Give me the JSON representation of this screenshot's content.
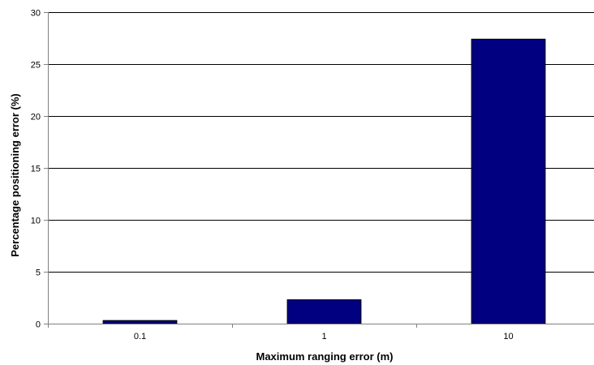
{
  "chart_data": {
    "type": "bar",
    "title": "",
    "xlabel": "Maximum ranging error (m)",
    "ylabel": "Percentage positioning error (%)",
    "categories": [
      "0.1",
      "1",
      "10"
    ],
    "values": [
      0.3,
      2.3,
      27.4
    ],
    "ylim": [
      0,
      30
    ],
    "yticks": [
      "0",
      "5",
      "10",
      "15",
      "20",
      "25",
      "30"
    ],
    "ytick_values": [
      0,
      5,
      10,
      15,
      20,
      25,
      30
    ],
    "grid": true,
    "legend": "none",
    "colors": {
      "bar": "#000080",
      "bar_edge": "#000000",
      "grid": "#000000",
      "axis": "#808080"
    }
  }
}
